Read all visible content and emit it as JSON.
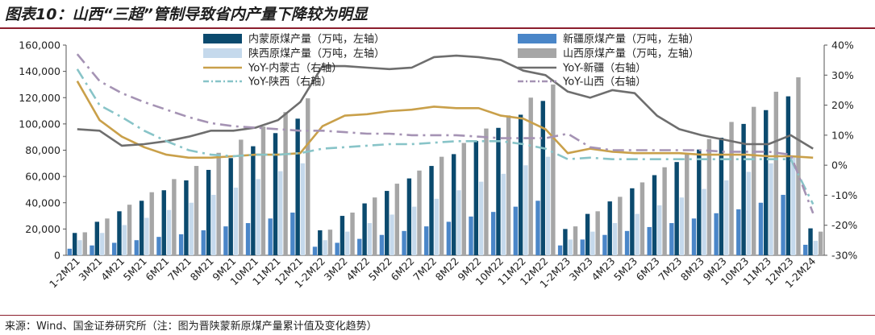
{
  "title": "图表10：山西“三超”管制导致省内产量下降较为明显",
  "source": "来源：Wind、国金证券研究所（注：图为晋陕蒙新原煤产量累计值及变化趋势）",
  "colors": {
    "inner_mongolia": "#0b4a6e",
    "xinjiang": "#4a86c8",
    "shaanxi": "#c5d9ec",
    "shanxi": "#a6a6a6",
    "yoy_inner_mongolia": "#c9a04a",
    "yoy_xinjiang": "#6e6e6e",
    "yoy_shaanxi": "#88c4c8",
    "yoy_shanxi": "#a593b4"
  },
  "chart_data": {
    "type": "bar",
    "categories": [
      "1-2M21",
      "3M21",
      "4M21",
      "5M21",
      "6M21",
      "7M21",
      "8M21",
      "9M21",
      "10M21",
      "11M21",
      "12M21",
      "1-2M22",
      "3M22",
      "4M22",
      "5M22",
      "6M22",
      "7M22",
      "8M22",
      "9M22",
      "10M22",
      "11M22",
      "12M22",
      "1-2M23",
      "3M23",
      "4M23",
      "5M23",
      "6M23",
      "7M23",
      "8M23",
      "9M23",
      "10M23",
      "11M23",
      "12M23",
      "1-2M24"
    ],
    "left_axis": {
      "ylim": [
        0,
        160000
      ],
      "ticks": [
        "0",
        "20,000",
        "40,000",
        "60,000",
        "80,000",
        "100,000",
        "120,000",
        "140,000",
        "160,000"
      ]
    },
    "right_axis": {
      "ylim": [
        -30,
        40
      ],
      "ticks": [
        "-30%",
        "-20%",
        "-10%",
        "0%",
        "10%",
        "20%",
        "30%",
        "40%"
      ]
    },
    "series": [
      {
        "name": "内蒙原煤产量（万吨，左轴）",
        "kind": "bar",
        "axis": "left",
        "values": [
          17000,
          25500,
          33500,
          41500,
          49500,
          57000,
          65000,
          74000,
          83000,
          93000,
          104000,
          19000,
          30000,
          39500,
          49000,
          58500,
          68000,
          77000,
          87000,
          97000,
          107000,
          117500,
          20000,
          31500,
          41000,
          51000,
          61000,
          71000,
          80500,
          89500,
          100000,
          110500,
          121000,
          20500
        ]
      },
      {
        "name": "新疆原煤产量（万吨，左轴）",
        "kind": "bar",
        "axis": "left",
        "values": [
          5000,
          7500,
          9500,
          11500,
          14000,
          16000,
          19000,
          22000,
          24500,
          28000,
          32500,
          6500,
          9500,
          12500,
          15500,
          18500,
          22000,
          25500,
          29500,
          33000,
          37000,
          41500,
          7500,
          12000,
          15500,
          18500,
          21500,
          24500,
          28000,
          32000,
          35000,
          40000,
          46000,
          8000
        ]
      },
      {
        "name": "陕西原煤产量（万吨，左轴）",
        "kind": "bar",
        "axis": "left",
        "values": [
          11500,
          17000,
          23000,
          28500,
          34500,
          40000,
          46000,
          51500,
          58000,
          64000,
          70000,
          11500,
          18000,
          24500,
          31000,
          37000,
          43000,
          49500,
          56000,
          62000,
          68500,
          75000,
          12000,
          18000,
          24500,
          31500,
          38000,
          44000,
          50500,
          57000,
          63500,
          70000,
          76000,
          11000
        ]
      },
      {
        "name": "山西原煤产量（万吨，左轴）",
        "kind": "bar",
        "axis": "left",
        "values": [
          17500,
          28000,
          38500,
          48000,
          58000,
          68000,
          78000,
          88000,
          98000,
          109000,
          119500,
          19500,
          32500,
          44000,
          54500,
          64500,
          75000,
          85500,
          96500,
          106500,
          120000,
          130000,
          22000,
          33500,
          44500,
          55500,
          67000,
          77500,
          88500,
          101500,
          113000,
          124500,
          135500,
          18000
        ]
      },
      {
        "name": "YoY-内蒙古（右轴）",
        "kind": "line",
        "axis": "right",
        "dash": "solid",
        "values": [
          28,
          15,
          9.5,
          6,
          3.5,
          2.5,
          2.5,
          3,
          3.5,
          3.5,
          4,
          13,
          16.5,
          17,
          18,
          18.5,
          19.5,
          19,
          19,
          16.5,
          15.5,
          12,
          4,
          5.5,
          4.5,
          4,
          4,
          4,
          3.5,
          3.5,
          3.5,
          3,
          3,
          2.5
        ]
      },
      {
        "name": "YoY-新疆（右轴）",
        "kind": "line",
        "axis": "right",
        "dash": "solid",
        "values": [
          12,
          11.5,
          6.5,
          7,
          8,
          9.5,
          11.5,
          11.5,
          12.5,
          15,
          21,
          33,
          33,
          32.5,
          32,
          32.5,
          36,
          36.5,
          36,
          35,
          31.5,
          30,
          24.5,
          22.5,
          25,
          24,
          16.5,
          12,
          10,
          8.5,
          7,
          7,
          10,
          5.5
        ]
      },
      {
        "name": "YoY-陕西（右轴）",
        "kind": "line",
        "axis": "right",
        "dash": "dashdot",
        "values": [
          32,
          20,
          16,
          11.5,
          8,
          5,
          3.5,
          3,
          3.5,
          3.5,
          4,
          5.5,
          6,
          6.5,
          7,
          7,
          7.5,
          8,
          8,
          8,
          7,
          5.5,
          2,
          2.5,
          2,
          2,
          2,
          2,
          2,
          2,
          2,
          2,
          2,
          -13
        ]
      },
      {
        "name": "YoY-山西（右轴）",
        "kind": "line",
        "axis": "right",
        "dash": "dashdot",
        "values": [
          37,
          28,
          24,
          21,
          18.5,
          16,
          14,
          13,
          12.5,
          12,
          11.5,
          11.5,
          11,
          10.5,
          10.5,
          10,
          10,
          10,
          9.5,
          9,
          9,
          9,
          10.5,
          6,
          5,
          5,
          5,
          5,
          5,
          4.5,
          4.5,
          4.5,
          3.5,
          -16
        ]
      }
    ],
    "legend_placement": "top",
    "grid": false
  }
}
